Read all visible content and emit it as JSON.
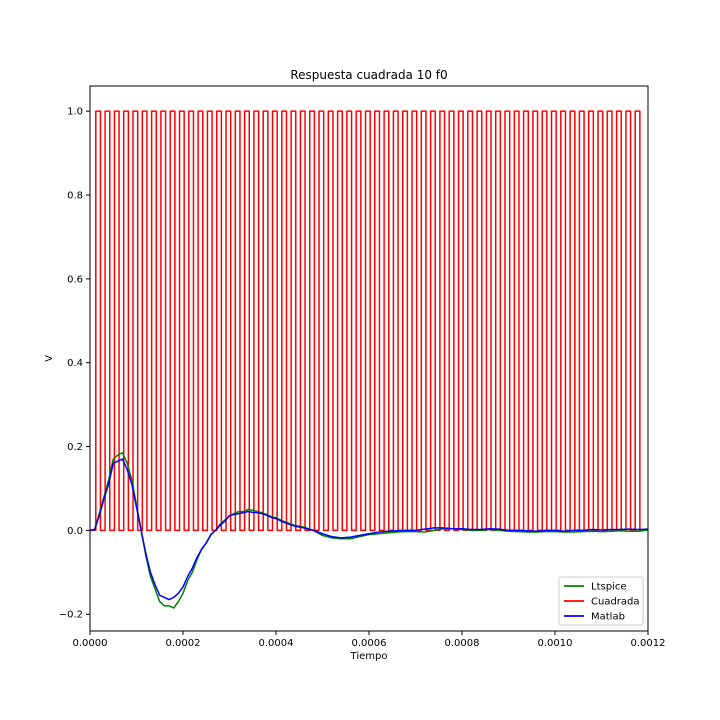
{
  "chart_data": {
    "type": "line",
    "title": "Respuesta cuadrada 10 f0",
    "xlabel": "Tiempo",
    "ylabel": "V",
    "xlim": [
      0,
      0.0012
    ],
    "ylim": [
      -0.24,
      1.06
    ],
    "xticks": [
      0,
      0.0002,
      0.0004,
      0.0006,
      0.0008,
      0.001,
      0.0012
    ],
    "xtick_labels": [
      "0.0000",
      "0.0002",
      "0.0004",
      "0.0006",
      "0.0008",
      "0.0010",
      "0.0012"
    ],
    "yticks": [
      -0.2,
      0,
      0.2,
      0.4,
      0.6,
      0.8,
      1.0
    ],
    "ytick_labels": [
      "−0.2",
      "0.0",
      "0.2",
      "0.4",
      "0.6",
      "0.8",
      "1.0"
    ],
    "grid": false,
    "legend_position": "lower-right",
    "series": [
      {
        "name": "Ltspice",
        "color": "#008000",
        "x": [
          0,
          1e-05,
          2e-05,
          3e-05,
          4e-05,
          5e-05,
          6e-05,
          7e-05,
          8e-05,
          9e-05,
          0.0001,
          0.00011,
          0.00012,
          0.00013,
          0.00014,
          0.00015,
          0.00016,
          0.00017,
          0.00018,
          0.00019,
          0.0002,
          0.00021,
          0.00022,
          0.00023,
          0.00024,
          0.00025,
          0.00026,
          0.00027,
          0.00028,
          0.00029,
          0.0003,
          0.00031,
          0.00032,
          0.00033,
          0.00034,
          0.00035,
          0.00036,
          0.00037,
          0.00038,
          0.00039,
          0.0004,
          0.00042,
          0.00044,
          0.00046,
          0.00048,
          0.0005,
          0.00052,
          0.00054,
          0.00056,
          0.00058,
          0.0006,
          0.00062,
          0.00064,
          0.00066,
          0.00068,
          0.0007,
          0.00072,
          0.00074,
          0.00076,
          0.00078,
          0.0008,
          0.00082,
          0.00084,
          0.00086,
          0.00088,
          0.0009,
          0.00092,
          0.00094,
          0.00096,
          0.00098,
          0.001,
          0.00102,
          0.00104,
          0.00106,
          0.00108,
          0.0011,
          0.00112,
          0.00114,
          0.00116,
          0.00118,
          0.0012
        ],
        "y": [
          0,
          0.002,
          0.04,
          0.08,
          0.12,
          0.17,
          0.18,
          0.185,
          0.16,
          0.12,
          0.06,
          0.0,
          -0.06,
          -0.11,
          -0.14,
          -0.17,
          -0.18,
          -0.18,
          -0.185,
          -0.17,
          -0.15,
          -0.12,
          -0.1,
          -0.07,
          -0.045,
          -0.03,
          -0.01,
          0.0,
          0.015,
          0.025,
          0.035,
          0.04,
          0.045,
          0.045,
          0.05,
          0.048,
          0.045,
          0.042,
          0.038,
          0.033,
          0.03,
          0.02,
          0.012,
          0.008,
          0.0,
          -0.012,
          -0.018,
          -0.02,
          -0.02,
          -0.015,
          -0.01,
          -0.008,
          -0.006,
          -0.004,
          -0.003,
          -0.003,
          -0.004,
          0.0,
          0.004,
          0.004,
          0.002,
          0.0,
          0.0,
          0.002,
          0.0,
          -0.002,
          -0.003,
          -0.004,
          -0.004,
          -0.003,
          -0.003,
          -0.004,
          -0.004,
          -0.003,
          -0.002,
          -0.003,
          -0.002,
          -0.001,
          -0.002,
          -0.002,
          0.001
        ]
      },
      {
        "name": "Cuadrada",
        "color": "#ff0000",
        "x": [],
        "y": [],
        "square_wave": {
          "period": 2e-05,
          "duty": 0.5,
          "start": 1.25e-05,
          "end": 0.00119,
          "low": 0,
          "high": 1
        }
      },
      {
        "name": "Matlab",
        "color": "#0000ff",
        "x": [
          0,
          1e-05,
          2e-05,
          3e-05,
          4e-05,
          5e-05,
          6e-05,
          7e-05,
          8e-05,
          9e-05,
          0.0001,
          0.00011,
          0.00012,
          0.00013,
          0.00014,
          0.00015,
          0.00016,
          0.00017,
          0.00018,
          0.00019,
          0.0002,
          0.00021,
          0.00022,
          0.00023,
          0.00024,
          0.00025,
          0.00026,
          0.00027,
          0.00028,
          0.00029,
          0.0003,
          0.00031,
          0.00032,
          0.00033,
          0.00034,
          0.00035,
          0.00036,
          0.00037,
          0.00038,
          0.00039,
          0.0004,
          0.00042,
          0.00044,
          0.00046,
          0.00048,
          0.0005,
          0.00052,
          0.00054,
          0.00056,
          0.00058,
          0.0006,
          0.00062,
          0.00064,
          0.00066,
          0.00068,
          0.0007,
          0.00072,
          0.00074,
          0.00076,
          0.00078,
          0.0008,
          0.00082,
          0.00084,
          0.00086,
          0.00088,
          0.0009,
          0.00092,
          0.00094,
          0.00096,
          0.00098,
          0.001,
          0.00102,
          0.00104,
          0.00106,
          0.00108,
          0.0011,
          0.00112,
          0.00114,
          0.00116,
          0.00118,
          0.0012
        ],
        "y": [
          0,
          0.002,
          0.035,
          0.075,
          0.11,
          0.16,
          0.165,
          0.17,
          0.145,
          0.11,
          0.055,
          0.0,
          -0.055,
          -0.1,
          -0.13,
          -0.155,
          -0.16,
          -0.165,
          -0.16,
          -0.15,
          -0.135,
          -0.11,
          -0.09,
          -0.065,
          -0.045,
          -0.03,
          -0.01,
          0.0,
          0.012,
          0.022,
          0.035,
          0.038,
          0.04,
          0.042,
          0.045,
          0.043,
          0.042,
          0.04,
          0.036,
          0.031,
          0.028,
          0.018,
          0.01,
          0.006,
          0.0,
          -0.008,
          -0.015,
          -0.018,
          -0.016,
          -0.012,
          -0.008,
          -0.004,
          -0.002,
          -0.001,
          0.0,
          0.0,
          0.003,
          0.006,
          0.006,
          0.004,
          0.004,
          0.002,
          0.002,
          0.004,
          0.003,
          0.0,
          0.0,
          -0.001,
          -0.002,
          0.0,
          0.0,
          -0.002,
          0.0,
          0.0,
          0.002,
          0.001,
          0.002,
          0.002,
          0.003,
          0.002,
          0.003
        ]
      }
    ]
  }
}
